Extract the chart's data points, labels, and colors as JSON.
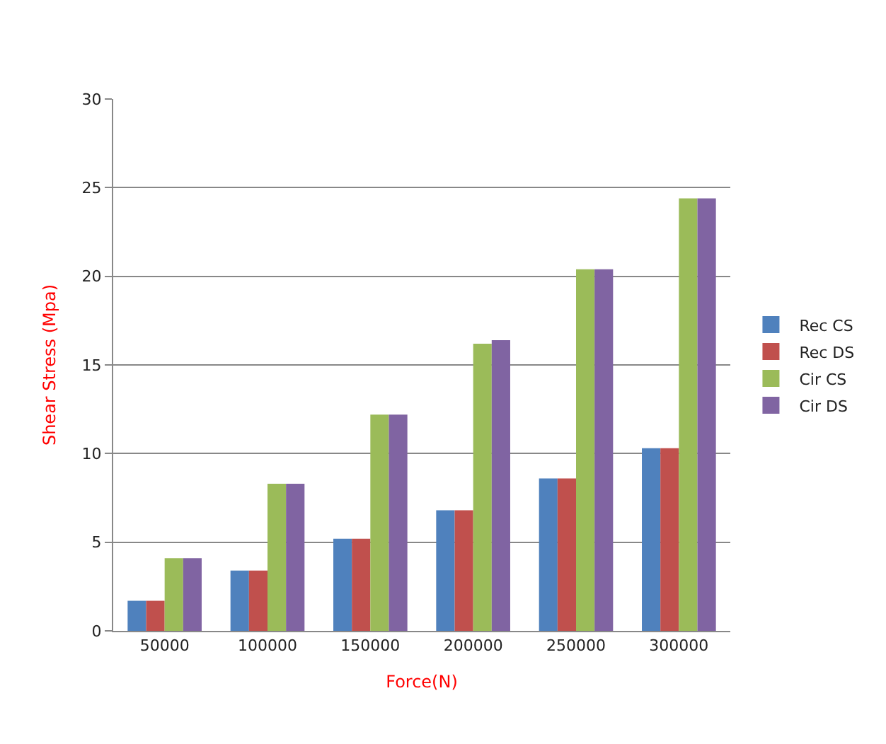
{
  "chart_data": {
    "type": "bar",
    "xlabel": "Force(N)",
    "ylabel": "Shear Stress (Mpa)",
    "categories": [
      "50000",
      "100000",
      "150000",
      "200000",
      "250000",
      "300000"
    ],
    "series": [
      {
        "name": "Rec CS",
        "color": "#4f81bd",
        "values": [
          1.7,
          3.4,
          5.2,
          6.8,
          8.6,
          10.3
        ]
      },
      {
        "name": "Rec DS",
        "color": "#c0504d",
        "values": [
          1.7,
          3.4,
          5.2,
          6.8,
          8.6,
          10.3
        ]
      },
      {
        "name": "Cir CS",
        "color": "#9bbb59",
        "values": [
          4.1,
          8.3,
          12.2,
          16.2,
          20.4,
          24.4
        ]
      },
      {
        "name": "Cir DS",
        "color": "#8064a2",
        "values": [
          4.1,
          8.3,
          12.2,
          16.4,
          20.4,
          24.4
        ]
      }
    ],
    "ylim": [
      0,
      30
    ],
    "yticks": [
      0,
      5,
      10,
      15,
      20,
      25,
      30
    ],
    "grid": "y",
    "legend": "right"
  }
}
